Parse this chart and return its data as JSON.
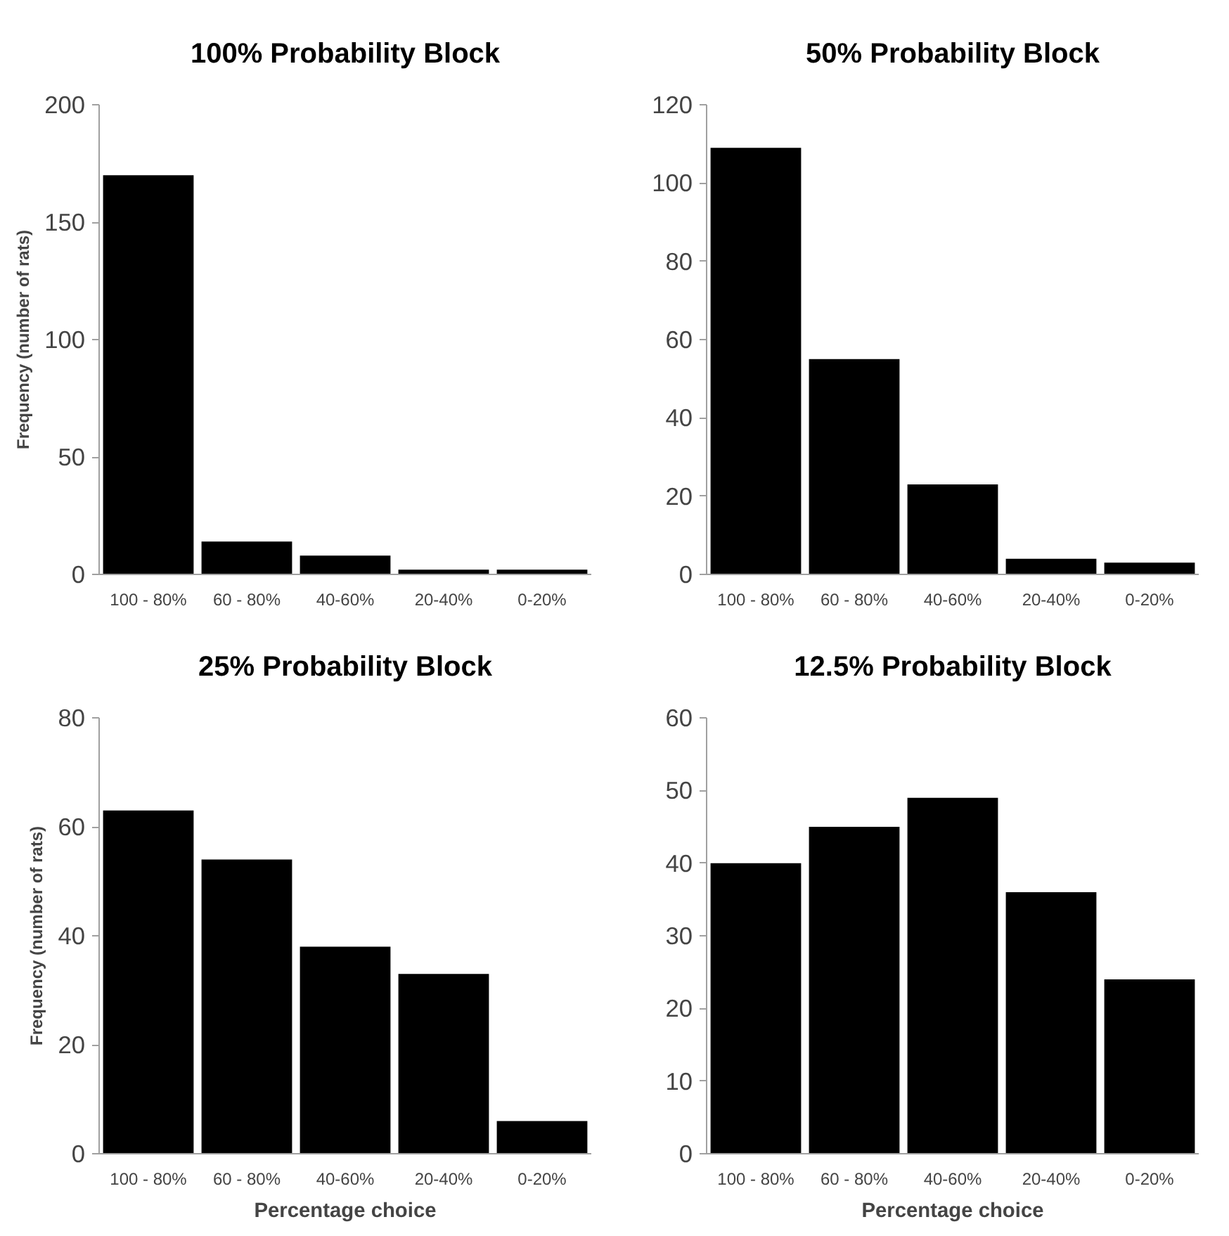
{
  "chart_data": [
    {
      "type": "bar",
      "title": "100% Probability Block",
      "ylabel": "Frequency (number of rats)",
      "categories": [
        "100 - 80%",
        "60 - 80%",
        "40-60%",
        "20-40%",
        "0-20%"
      ],
      "values": [
        170,
        14,
        8,
        2,
        2
      ],
      "color": "#000000",
      "ylim": [
        0,
        200
      ],
      "yticks": [
        0,
        50,
        100,
        150,
        200
      ],
      "grid": false
    },
    {
      "type": "bar",
      "title": "50% Probability Block",
      "categories": [
        "100 - 80%",
        "60 - 80%",
        "40-60%",
        "20-40%",
        "0-20%"
      ],
      "values": [
        109,
        55,
        23,
        4,
        3
      ],
      "color": "#000000",
      "ylim": [
        0,
        120
      ],
      "yticks": [
        0,
        20,
        40,
        60,
        80,
        100,
        120
      ],
      "grid": false
    },
    {
      "type": "bar",
      "title": "25% Probability Block",
      "ylabel": "Frequency (number of rats)",
      "xlabel": "Percentage choice",
      "categories": [
        "100 - 80%",
        "60 - 80%",
        "40-60%",
        "20-40%",
        "0-20%"
      ],
      "values": [
        63,
        54,
        38,
        33,
        6
      ],
      "color": "#000000",
      "ylim": [
        0,
        80
      ],
      "yticks": [
        0,
        20,
        40,
        60,
        80
      ],
      "grid": false
    },
    {
      "type": "bar",
      "title": "12.5% Probability Block",
      "xlabel": "Percentage choice",
      "categories": [
        "100 - 80%",
        "60 - 80%",
        "40-60%",
        "20-40%",
        "0-20%"
      ],
      "values": [
        40,
        45,
        49,
        36,
        24
      ],
      "color": "#000000",
      "ylim": [
        0,
        60
      ],
      "yticks": [
        0,
        10,
        20,
        30,
        40,
        50,
        60
      ],
      "grid": false
    }
  ]
}
